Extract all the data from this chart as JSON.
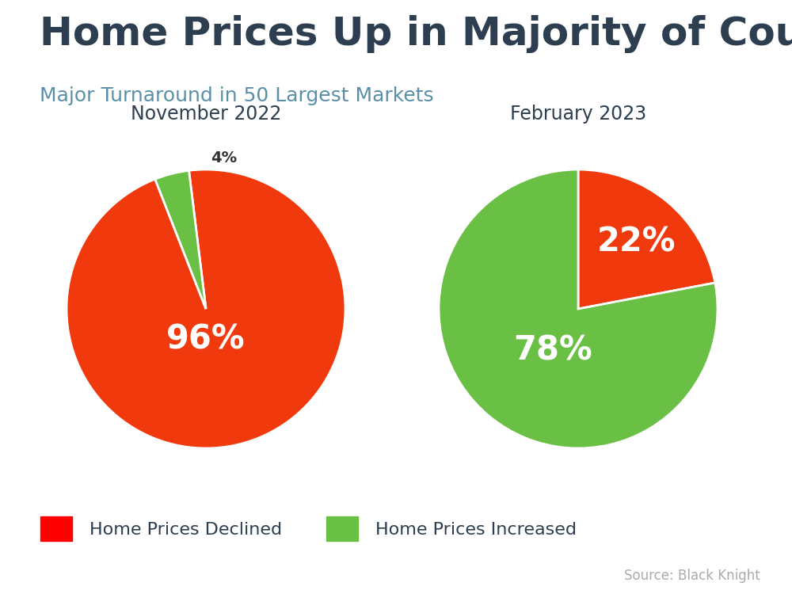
{
  "title": "Home Prices Up in Majority of Country",
  "subtitle": "Major Turnaround in 50 Largest Markets",
  "title_color": "#2d3e50",
  "subtitle_color": "#5b8fa8",
  "background_color": "#ffffff",
  "top_bar_color": "#4bbfd6",
  "pie1_title": "November 2022",
  "pie1_values": [
    96,
    4
  ],
  "pie1_colors": [
    "#f03a0e",
    "#6abf45"
  ],
  "pie1_startangle": 97,
  "pie2_title": "February 2023",
  "pie2_values": [
    22,
    78
  ],
  "pie2_colors": [
    "#f03a0e",
    "#6abf45"
  ],
  "pie2_startangle": 90,
  "legend_declined": "Home Prices Declined",
  "legend_increased": "Home Prices Increased",
  "legend_declined_color": "#ff0000",
  "legend_increased_color": "#6abf45",
  "source_text": "Source: Black Knight",
  "source_color": "#aaaaaa",
  "pie_title_fontsize": 17,
  "pie_label_fontsize_large": 30,
  "pie_label_fontsize_small": 14,
  "title_fontsize": 36,
  "subtitle_fontsize": 18,
  "legend_fontsize": 16,
  "source_fontsize": 12
}
